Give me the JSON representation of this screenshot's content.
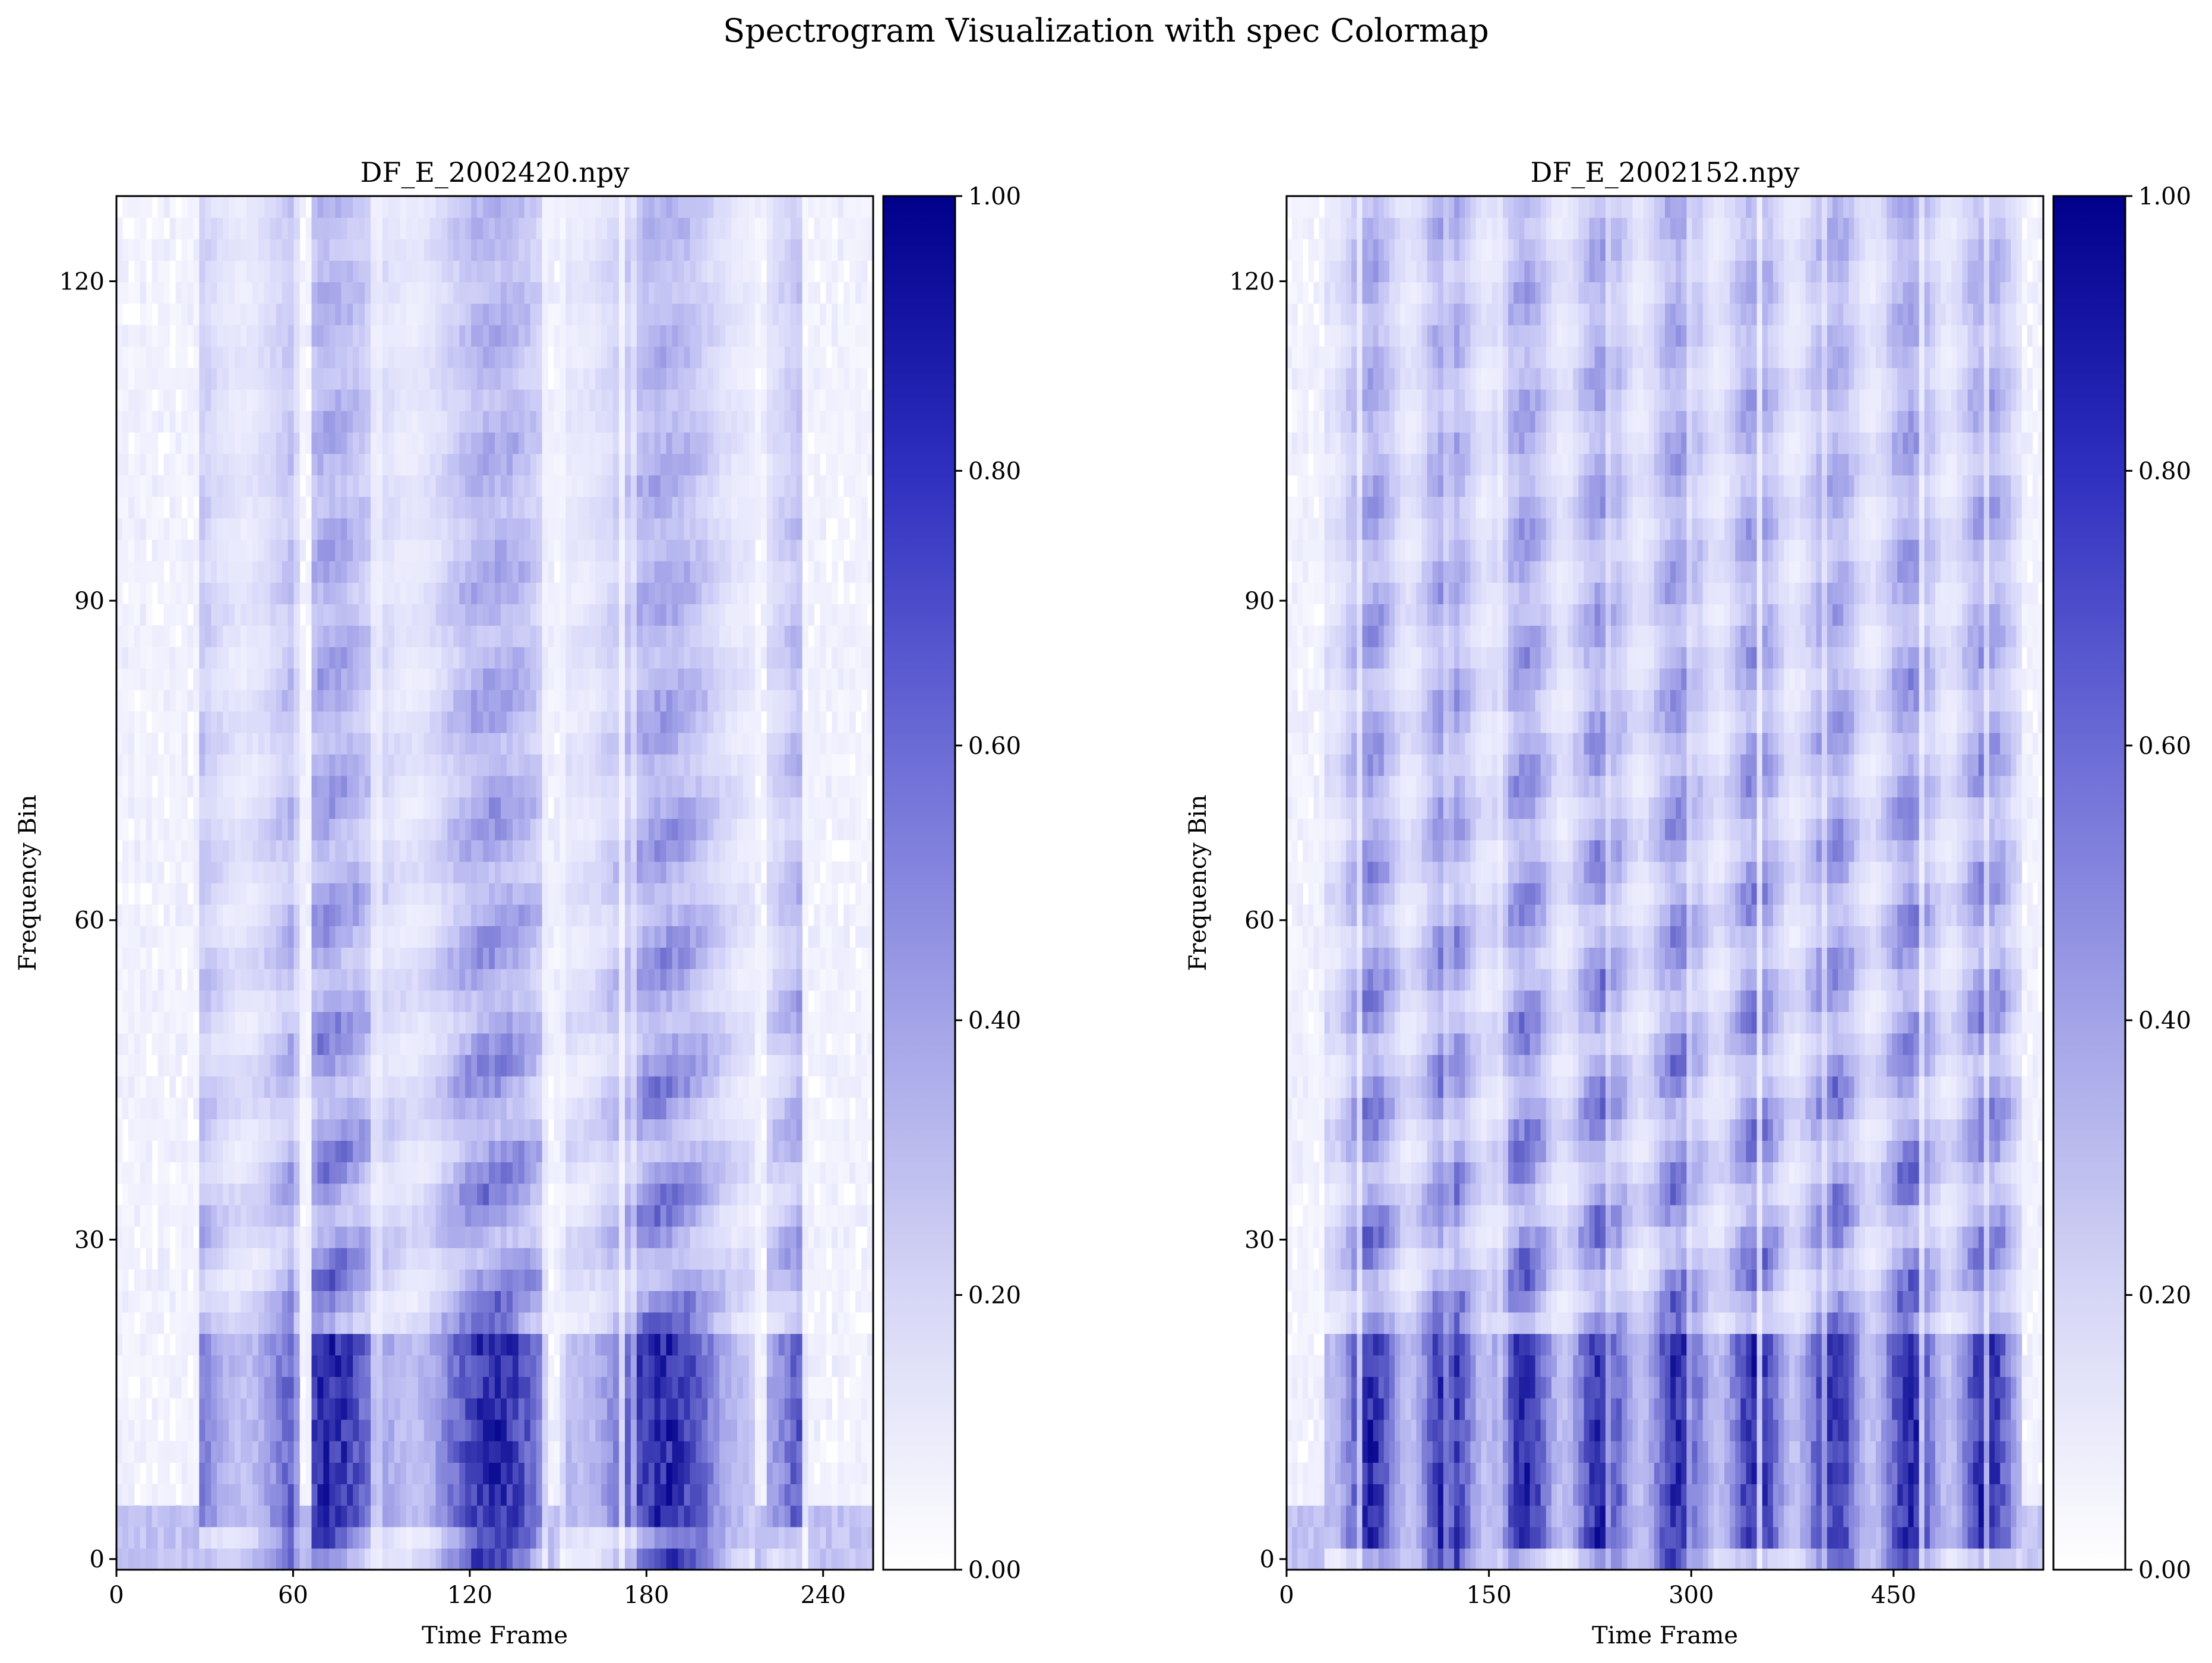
{
  "figure": {
    "suptitle": "Spectrogram Visualization with spec Colormap"
  },
  "colors": {
    "colormap_low": "#ffffff",
    "colormap_high": "#00008b",
    "axes": "#000000",
    "background": "#ffffff"
  },
  "chart_data": [
    {
      "type": "heatmap",
      "title": "DF_E_2002420.npy",
      "xlabel": "Time Frame",
      "ylabel": "Frequency Bin",
      "xlim": [
        0,
        257
      ],
      "ylim": [
        -1,
        128
      ],
      "xticks": [
        0,
        60,
        120,
        180,
        240
      ],
      "xtick_labels": [
        "0",
        "60",
        "120",
        "180",
        "240"
      ],
      "yticks": [
        0,
        30,
        60,
        90,
        120
      ],
      "ytick_labels": [
        "0",
        "30",
        "60",
        "90",
        "120"
      ],
      "colorbar": {
        "range": [
          0,
          1
        ],
        "ticks": [
          0.0,
          0.2,
          0.4,
          0.6,
          0.8,
          1.0
        ],
        "tick_labels": [
          "0.00",
          "0.20",
          "0.40",
          "0.60",
          "0.80",
          "1.00"
        ]
      },
      "colormap": "spec",
      "active_segments_time_frames": [
        [
          28,
          62
        ],
        [
          66,
          146
        ],
        [
          151,
          217
        ],
        [
          220,
          234
        ]
      ],
      "low_band_freq_bins": [
        3,
        22
      ]
    },
    {
      "type": "heatmap",
      "title": "DF_E_2002152.npy",
      "xlabel": "Time Frame",
      "ylabel": "Frequency Bin",
      "xlim": [
        0,
        561
      ],
      "ylim": [
        -1,
        128
      ],
      "xticks": [
        0,
        150,
        300,
        450
      ],
      "xtick_labels": [
        "0",
        "150",
        "300",
        "450"
      ],
      "yticks": [
        0,
        30,
        60,
        90,
        120
      ],
      "ytick_labels": [
        "0",
        "30",
        "60",
        "90",
        "120"
      ],
      "colorbar": {
        "range": [
          0,
          1
        ],
        "ticks": [
          0.0,
          0.2,
          0.4,
          0.6,
          0.8,
          1.0
        ],
        "tick_labels": [
          "0.00",
          "0.20",
          "0.40",
          "0.60",
          "0.80",
          "1.00"
        ]
      },
      "colormap": "spec",
      "active_segments_time_frames": [
        [
          30,
          545
        ]
      ],
      "low_band_freq_bins": [
        2,
        22
      ]
    }
  ]
}
